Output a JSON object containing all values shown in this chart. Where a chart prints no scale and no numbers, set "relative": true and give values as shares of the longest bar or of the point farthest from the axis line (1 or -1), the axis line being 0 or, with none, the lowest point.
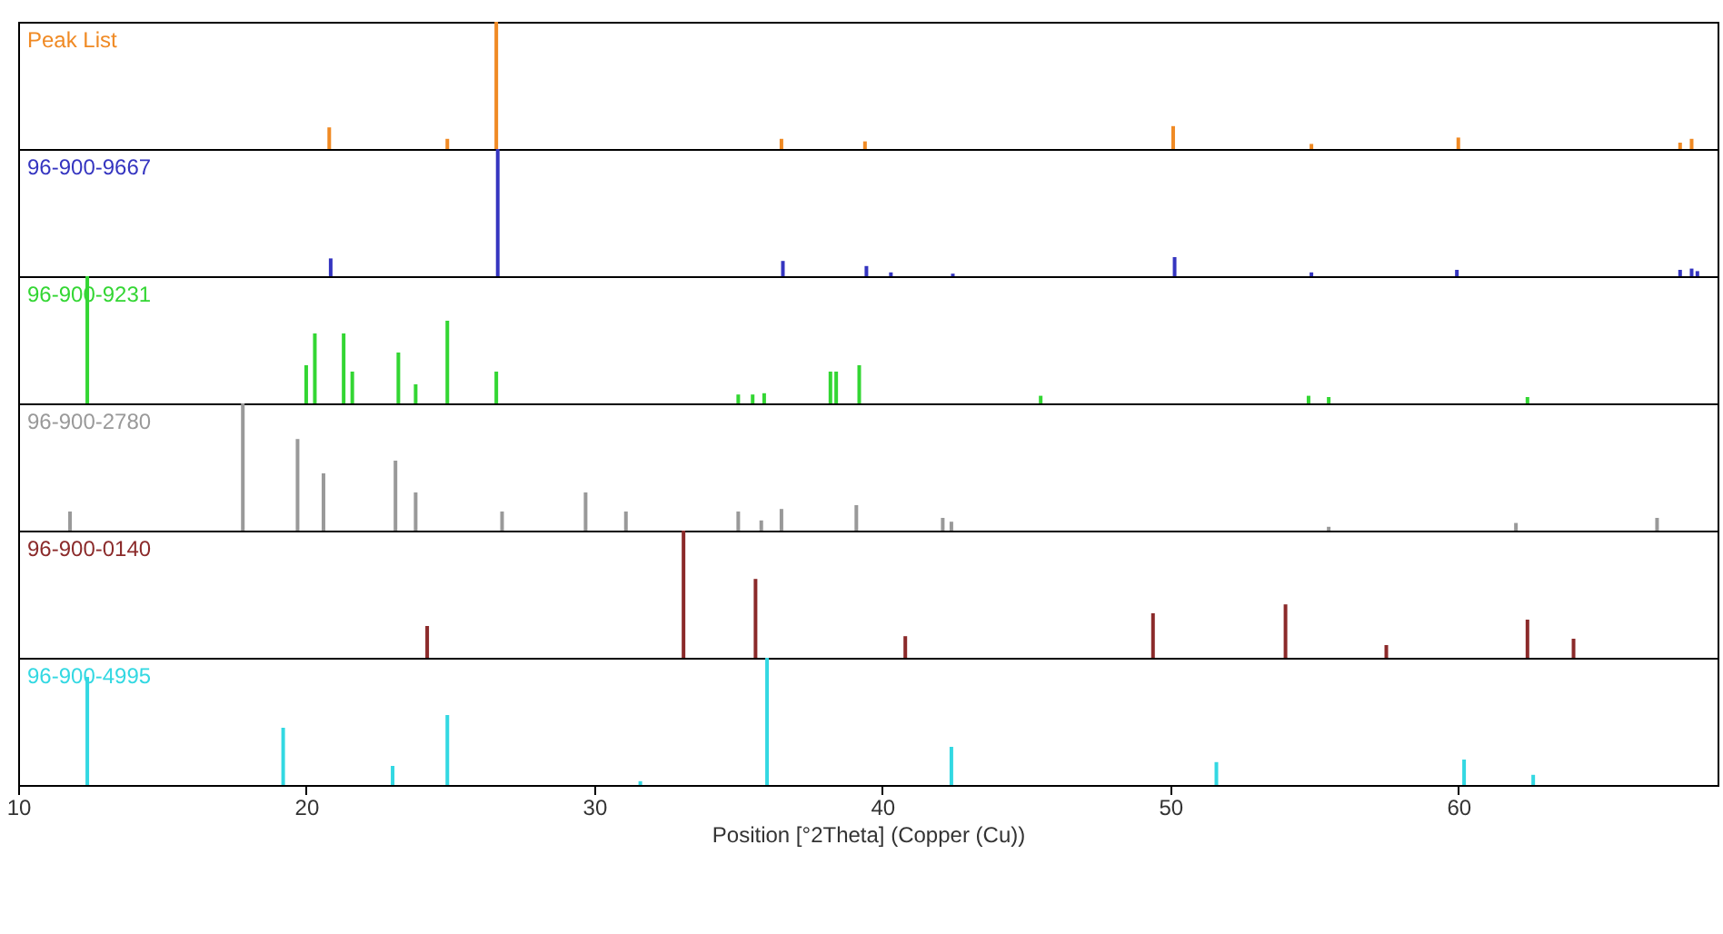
{
  "chart_data": [
    {
      "type": "bar",
      "relative": true,
      "xlim": [
        10,
        69
      ],
      "tick_labels": false,
      "x": [
        20.8,
        24.9,
        26.6,
        36.5,
        39.4,
        50.1,
        54.9,
        60.0,
        67.7,
        68.1
      ],
      "series": [
        {
          "name": "Peak List",
          "color": "#f08a24",
          "values": [
            0.17,
            0.08,
            1,
            0.08,
            0.06,
            0.18,
            0.04,
            0.09,
            0.05,
            0.08
          ]
        }
      ]
    },
    {
      "type": "bar",
      "relative": true,
      "xlim": [
        10,
        69
      ],
      "tick_labels": false,
      "x": [
        20.85,
        26.65,
        36.55,
        39.45,
        40.3,
        42.45,
        50.15,
        54.9,
        59.95,
        67.7,
        68.1,
        68.3
      ],
      "series": [
        {
          "name": "96-900-9667",
          "color": "#3535c0",
          "values": [
            0.14,
            1,
            0.12,
            0.08,
            0.03,
            0.02,
            0.15,
            0.03,
            0.05,
            0.05,
            0.06,
            0.04
          ]
        }
      ]
    },
    {
      "type": "bar",
      "relative": true,
      "xlim": [
        10,
        69
      ],
      "tick_labels": false,
      "x": [
        12.4,
        20.0,
        20.3,
        21.3,
        21.6,
        23.2,
        23.8,
        24.9,
        26.6,
        35.0,
        35.5,
        35.9,
        38.2,
        38.4,
        39.2,
        45.5,
        54.8,
        55.5,
        62.4
      ],
      "series": [
        {
          "name": "96-900-9231",
          "color": "#33d633",
          "values": [
            1,
            0.3,
            0.55,
            0.55,
            0.25,
            0.4,
            0.15,
            0.65,
            0.25,
            0.07,
            0.07,
            0.08,
            0.25,
            0.25,
            0.3,
            0.06,
            0.06,
            0.05,
            0.05
          ]
        }
      ]
    },
    {
      "type": "bar",
      "relative": true,
      "xlim": [
        10,
        69
      ],
      "tick_labels": false,
      "x": [
        11.8,
        17.8,
        19.7,
        20.6,
        23.1,
        23.8,
        26.8,
        29.7,
        31.1,
        35.0,
        35.8,
        36.5,
        39.1,
        42.1,
        42.4,
        55.5,
        62.0,
        66.9
      ],
      "series": [
        {
          "name": "96-900-2780",
          "color": "#999999",
          "values": [
            0.15,
            1,
            0.72,
            0.45,
            0.55,
            0.3,
            0.15,
            0.3,
            0.15,
            0.15,
            0.08,
            0.17,
            0.2,
            0.1,
            0.07,
            0.03,
            0.06,
            0.1
          ]
        }
      ]
    },
    {
      "type": "bar",
      "relative": true,
      "xlim": [
        10,
        69
      ],
      "tick_labels": false,
      "x": [
        24.2,
        33.1,
        35.6,
        40.8,
        49.4,
        54.0,
        57.5,
        62.4,
        64.0
      ],
      "series": [
        {
          "name": "96-900-0140",
          "color": "#8b2a2a",
          "values": [
            0.25,
            1,
            0.62,
            0.17,
            0.35,
            0.42,
            0.1,
            0.3,
            0.15
          ]
        }
      ]
    },
    {
      "type": "bar",
      "relative": true,
      "xlim": [
        10,
        69
      ],
      "xticks": [
        10,
        20,
        30,
        40,
        50,
        60
      ],
      "xlabel": "Position [°2Theta] (Copper (Cu))",
      "x": [
        12.4,
        19.2,
        23.0,
        24.9,
        31.6,
        36.0,
        42.4,
        51.6,
        60.2,
        62.6
      ],
      "series": [
        {
          "name": "96-900-4995",
          "color": "#33d8e2",
          "values": [
            0.85,
            0.45,
            0.15,
            0.55,
            0.03,
            1,
            0.3,
            0.18,
            0.2,
            0.08
          ]
        }
      ]
    }
  ]
}
